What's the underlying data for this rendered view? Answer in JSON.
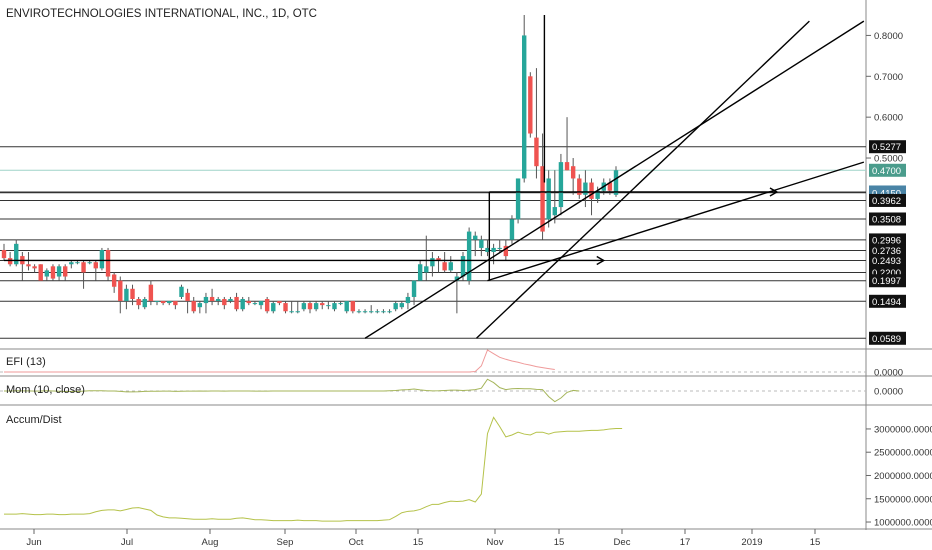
{
  "header": {
    "title": "ENVIROTECHNOLOGIES INTERNATIONAL, INC., 1D, OTC"
  },
  "indicators": {
    "efi_label": "EFI (13)",
    "mom_label": "Mom (10, close)",
    "ad_label": "Accum/Dist",
    "efi_value": "0.0000",
    "mom_value": "0.0000"
  },
  "colors": {
    "up": "#26a69a",
    "down": "#ef5350",
    "line": "#000000",
    "price_badge": "#4a9c8c",
    "hl_badge": "#4a84a6",
    "efi": "#ef9a9a",
    "mom": "#a5b55a",
    "ad": "#b5c24a"
  },
  "chart_data": {
    "type": "candlestick",
    "price_axis": {
      "ticks": [
        "0.8000",
        "0.7000",
        "0.6000",
        "0.5000"
      ],
      "ylim": [
        0.04,
        0.85
      ]
    },
    "x_ticks": [
      "Jun",
      "Jul",
      "Aug",
      "Sep",
      "Oct",
      "15",
      "Nov",
      "15",
      "Dec",
      "17",
      "2019",
      "15"
    ],
    "horizontal_levels": [
      "0.5277",
      "0.4169",
      "0.4150",
      "0.3962",
      "0.3508",
      "0.2996",
      "0.2736",
      "0.2493",
      "0.2200",
      "0.1997",
      "0.1494",
      "0.0589"
    ],
    "current_price": "0.4700",
    "ad_axis": {
      "ticks": [
        "3000000.0000",
        "2500000.0000",
        "2000000.0000",
        "1500000.0000",
        "1000000.0000"
      ],
      "ylim": [
        850000,
        3450000
      ]
    },
    "candles": [
      {
        "o": 0.275,
        "h": 0.29,
        "l": 0.25,
        "c": 0.255
      },
      {
        "o": 0.255,
        "h": 0.27,
        "l": 0.235,
        "c": 0.24
      },
      {
        "o": 0.24,
        "h": 0.3,
        "l": 0.235,
        "c": 0.29
      },
      {
        "o": 0.26,
        "h": 0.27,
        "l": 0.2,
        "c": 0.24
      },
      {
        "o": 0.24,
        "h": 0.27,
        "l": 0.225,
        "c": 0.235
      },
      {
        "o": 0.235,
        "h": 0.24,
        "l": 0.22,
        "c": 0.23
      },
      {
        "o": 0.24,
        "h": 0.24,
        "l": 0.2,
        "c": 0.2
      },
      {
        "o": 0.21,
        "h": 0.23,
        "l": 0.2,
        "c": 0.225
      },
      {
        "o": 0.235,
        "h": 0.24,
        "l": 0.2,
        "c": 0.205
      },
      {
        "o": 0.21,
        "h": 0.24,
        "l": 0.2,
        "c": 0.235
      },
      {
        "o": 0.235,
        "h": 0.24,
        "l": 0.2,
        "c": 0.21
      },
      {
        "o": 0.24,
        "h": 0.25,
        "l": 0.23,
        "c": 0.245
      },
      {
        "o": 0.245,
        "h": 0.25,
        "l": 0.24,
        "c": 0.245
      },
      {
        "o": 0.245,
        "h": 0.25,
        "l": 0.18,
        "c": 0.22
      },
      {
        "o": 0.245,
        "h": 0.25,
        "l": 0.24,
        "c": 0.245
      },
      {
        "o": 0.245,
        "h": 0.25,
        "l": 0.2,
        "c": 0.23
      },
      {
        "o": 0.23,
        "h": 0.28,
        "l": 0.225,
        "c": 0.275
      },
      {
        "o": 0.275,
        "h": 0.28,
        "l": 0.2,
        "c": 0.21
      },
      {
        "o": 0.215,
        "h": 0.22,
        "l": 0.17,
        "c": 0.185
      },
      {
        "o": 0.2,
        "h": 0.21,
        "l": 0.12,
        "c": 0.15
      },
      {
        "o": 0.15,
        "h": 0.19,
        "l": 0.13,
        "c": 0.18
      },
      {
        "o": 0.18,
        "h": 0.19,
        "l": 0.14,
        "c": 0.155
      },
      {
        "o": 0.155,
        "h": 0.16,
        "l": 0.13,
        "c": 0.14
      },
      {
        "o": 0.135,
        "h": 0.16,
        "l": 0.13,
        "c": 0.155
      },
      {
        "o": 0.19,
        "h": 0.2,
        "l": 0.14,
        "c": 0.15
      },
      {
        "o": 0.15,
        "h": 0.15,
        "l": 0.14,
        "c": 0.15
      },
      {
        "o": 0.15,
        "h": 0.15,
        "l": 0.14,
        "c": 0.145
      },
      {
        "o": 0.145,
        "h": 0.15,
        "l": 0.14,
        "c": 0.15
      },
      {
        "o": 0.15,
        "h": 0.15,
        "l": 0.13,
        "c": 0.14
      },
      {
        "o": 0.16,
        "h": 0.19,
        "l": 0.155,
        "c": 0.185
      },
      {
        "o": 0.17,
        "h": 0.18,
        "l": 0.12,
        "c": 0.15
      },
      {
        "o": 0.15,
        "h": 0.16,
        "l": 0.12,
        "c": 0.125
      },
      {
        "o": 0.135,
        "h": 0.15,
        "l": 0.12,
        "c": 0.145
      },
      {
        "o": 0.145,
        "h": 0.17,
        "l": 0.12,
        "c": 0.16
      },
      {
        "o": 0.16,
        "h": 0.18,
        "l": 0.14,
        "c": 0.15
      },
      {
        "o": 0.15,
        "h": 0.16,
        "l": 0.14,
        "c": 0.155
      },
      {
        "o": 0.155,
        "h": 0.16,
        "l": 0.13,
        "c": 0.14
      },
      {
        "o": 0.15,
        "h": 0.16,
        "l": 0.145,
        "c": 0.155
      },
      {
        "o": 0.16,
        "h": 0.17,
        "l": 0.125,
        "c": 0.13
      },
      {
        "o": 0.13,
        "h": 0.16,
        "l": 0.125,
        "c": 0.155
      },
      {
        "o": 0.15,
        "h": 0.16,
        "l": 0.14,
        "c": 0.145
      },
      {
        "o": 0.145,
        "h": 0.15,
        "l": 0.14,
        "c": 0.145
      },
      {
        "o": 0.14,
        "h": 0.15,
        "l": 0.13,
        "c": 0.15
      },
      {
        "o": 0.155,
        "h": 0.16,
        "l": 0.12,
        "c": 0.125
      },
      {
        "o": 0.125,
        "h": 0.15,
        "l": 0.12,
        "c": 0.145
      },
      {
        "o": 0.15,
        "h": 0.15,
        "l": 0.14,
        "c": 0.145
      },
      {
        "o": 0.145,
        "h": 0.15,
        "l": 0.12,
        "c": 0.125
      },
      {
        "o": 0.125,
        "h": 0.15,
        "l": 0.12,
        "c": 0.125
      },
      {
        "o": 0.125,
        "h": 0.15,
        "l": 0.12,
        "c": 0.125
      },
      {
        "o": 0.13,
        "h": 0.15,
        "l": 0.125,
        "c": 0.145
      },
      {
        "o": 0.145,
        "h": 0.15,
        "l": 0.12,
        "c": 0.13
      },
      {
        "o": 0.13,
        "h": 0.15,
        "l": 0.125,
        "c": 0.145
      },
      {
        "o": 0.145,
        "h": 0.15,
        "l": 0.13,
        "c": 0.14
      },
      {
        "o": 0.14,
        "h": 0.15,
        "l": 0.13,
        "c": 0.14
      },
      {
        "o": 0.13,
        "h": 0.15,
        "l": 0.125,
        "c": 0.145
      },
      {
        "o": 0.145,
        "h": 0.15,
        "l": 0.14,
        "c": 0.145
      },
      {
        "o": 0.125,
        "h": 0.15,
        "l": 0.12,
        "c": 0.15
      },
      {
        "o": 0.15,
        "h": 0.15,
        "l": 0.12,
        "c": 0.125
      },
      {
        "o": 0.125,
        "h": 0.13,
        "l": 0.12,
        "c": 0.125
      },
      {
        "o": 0.125,
        "h": 0.13,
        "l": 0.12,
        "c": 0.125
      },
      {
        "o": 0.125,
        "h": 0.14,
        "l": 0.12,
        "c": 0.125
      },
      {
        "o": 0.125,
        "h": 0.13,
        "l": 0.12,
        "c": 0.125
      },
      {
        "o": 0.125,
        "h": 0.13,
        "l": 0.12,
        "c": 0.125
      },
      {
        "o": 0.125,
        "h": 0.13,
        "l": 0.12,
        "c": 0.125
      },
      {
        "o": 0.13,
        "h": 0.15,
        "l": 0.125,
        "c": 0.145
      },
      {
        "o": 0.135,
        "h": 0.15,
        "l": 0.13,
        "c": 0.145
      },
      {
        "o": 0.145,
        "h": 0.17,
        "l": 0.13,
        "c": 0.16
      },
      {
        "o": 0.16,
        "h": 0.2,
        "l": 0.14,
        "c": 0.2
      },
      {
        "o": 0.2,
        "h": 0.25,
        "l": 0.2,
        "c": 0.24
      },
      {
        "o": 0.22,
        "h": 0.31,
        "l": 0.2,
        "c": 0.235
      },
      {
        "o": 0.235,
        "h": 0.27,
        "l": 0.21,
        "c": 0.255
      },
      {
        "o": 0.255,
        "h": 0.26,
        "l": 0.22,
        "c": 0.25
      },
      {
        "o": 0.245,
        "h": 0.27,
        "l": 0.22,
        "c": 0.225
      },
      {
        "o": 0.225,
        "h": 0.26,
        "l": 0.22,
        "c": 0.245
      },
      {
        "o": 0.2,
        "h": 0.22,
        "l": 0.12,
        "c": 0.21
      },
      {
        "o": 0.21,
        "h": 0.27,
        "l": 0.2,
        "c": 0.26
      },
      {
        "o": 0.2,
        "h": 0.33,
        "l": 0.19,
        "c": 0.32
      },
      {
        "o": 0.3,
        "h": 0.32,
        "l": 0.26,
        "c": 0.31
      },
      {
        "o": 0.28,
        "h": 0.31,
        "l": 0.26,
        "c": 0.3
      },
      {
        "o": 0.27,
        "h": 0.3,
        "l": 0.26,
        "c": 0.28
      },
      {
        "o": 0.27,
        "h": 0.29,
        "l": 0.24,
        "c": 0.28
      },
      {
        "o": 0.28,
        "h": 0.3,
        "l": 0.27,
        "c": 0.28
      },
      {
        "o": 0.285,
        "h": 0.3,
        "l": 0.25,
        "c": 0.26
      },
      {
        "o": 0.3,
        "h": 0.36,
        "l": 0.29,
        "c": 0.35
      },
      {
        "o": 0.35,
        "h": 0.45,
        "l": 0.34,
        "c": 0.45
      },
      {
        "o": 0.45,
        "h": 0.85,
        "l": 0.44,
        "c": 0.8
      },
      {
        "o": 0.7,
        "h": 0.71,
        "l": 0.55,
        "c": 0.56
      },
      {
        "o": 0.55,
        "h": 0.72,
        "l": 0.45,
        "c": 0.48
      },
      {
        "o": 0.48,
        "h": 0.56,
        "l": 0.3,
        "c": 0.32
      },
      {
        "o": 0.35,
        "h": 0.47,
        "l": 0.33,
        "c": 0.45
      },
      {
        "o": 0.36,
        "h": 0.47,
        "l": 0.34,
        "c": 0.38
      },
      {
        "o": 0.38,
        "h": 0.51,
        "l": 0.36,
        "c": 0.49
      },
      {
        "o": 0.49,
        "h": 0.6,
        "l": 0.47,
        "c": 0.47
      },
      {
        "o": 0.48,
        "h": 0.5,
        "l": 0.41,
        "c": 0.45
      },
      {
        "o": 0.45,
        "h": 0.46,
        "l": 0.4,
        "c": 0.41
      },
      {
        "o": 0.41,
        "h": 0.47,
        "l": 0.38,
        "c": 0.44
      },
      {
        "o": 0.44,
        "h": 0.45,
        "l": 0.36,
        "c": 0.4
      },
      {
        "o": 0.4,
        "h": 0.43,
        "l": 0.39,
        "c": 0.42
      },
      {
        "o": 0.42,
        "h": 0.45,
        "l": 0.41,
        "c": 0.44
      },
      {
        "o": 0.44,
        "h": 0.45,
        "l": 0.41,
        "c": 0.42
      },
      {
        "o": 0.41,
        "h": 0.48,
        "l": 0.405,
        "c": 0.47
      }
    ],
    "ad_series": [
      1170000,
      1170000,
      1170000,
      1180000,
      1170000,
      1160000,
      1160000,
      1170000,
      1170000,
      1160000,
      1160000,
      1170000,
      1170000,
      1170000,
      1180000,
      1220000,
      1250000,
      1260000,
      1260000,
      1240000,
      1270000,
      1300000,
      1310000,
      1280000,
      1250000,
      1150000,
      1110000,
      1090000,
      1090000,
      1080000,
      1070000,
      1060000,
      1060000,
      1060000,
      1070000,
      1060000,
      1060000,
      1060000,
      1080000,
      1090000,
      1070000,
      1050000,
      1050000,
      1040000,
      1030000,
      1030000,
      1030000,
      1030000,
      1040000,
      1030000,
      1030000,
      1030000,
      1020000,
      1020000,
      1020000,
      1020000,
      1030000,
      1030000,
      1030000,
      1030000,
      1030000,
      1030000,
      1040000,
      1050000,
      1120000,
      1200000,
      1230000,
      1240000,
      1270000,
      1330000,
      1380000,
      1380000,
      1420000,
      1450000,
      1440000,
      1450000,
      1480000,
      1430000,
      1600000,
      2900000,
      3250000,
      3050000,
      2830000,
      2870000,
      2930000,
      2890000,
      2870000,
      2930000,
      2930000,
      2890000,
      2930000,
      2940000,
      2950000,
      2950000,
      2950000,
      2960000,
      2970000,
      2970000,
      2980000,
      3000000,
      3010000,
      3010000
    ],
    "mom_series": [
      0,
      0,
      0.01,
      0.005,
      0.005,
      -0.005,
      0,
      0.01,
      0,
      -0.01,
      -0.02,
      -0.02,
      -0.02,
      -0.005,
      0.01,
      0.01,
      0.01,
      0,
      0,
      -0.015,
      -0.03,
      -0.03,
      -0.025,
      -0.015,
      -0.01,
      -0.01,
      -0.005,
      -0.005,
      -0.015,
      -0.01,
      -0.005,
      -0.005,
      0,
      -0.005,
      0,
      0,
      -0.005,
      0,
      0,
      0,
      0,
      -0.005,
      -0.005,
      -0.005,
      0,
      0,
      0,
      0,
      0,
      0,
      0,
      0,
      0,
      0,
      0,
      0,
      0,
      0,
      0,
      0,
      0,
      0,
      0,
      0.01,
      0.02,
      0.04,
      0.05,
      0.07,
      0.04,
      0.02,
      0.005,
      0.01,
      0.02,
      0.03,
      0.03,
      0.02,
      0.03,
      0.05,
      0.1,
      0.42,
      0.3,
      0.12,
      0.05,
      0.08,
      0.09,
      0.08,
      0.08,
      0.06,
      0.05,
      -0.2,
      -0.38,
      -0.25,
      -0.05,
      0.02,
      0.0
    ],
    "efi_series": [
      0,
      0,
      0,
      0,
      0,
      0,
      0,
      0,
      0,
      0,
      0,
      0,
      0,
      0,
      0,
      0,
      0,
      0,
      0,
      0,
      0,
      0,
      0,
      0,
      0,
      0,
      0,
      0,
      0,
      0,
      0,
      0,
      0,
      0,
      0,
      0,
      0,
      0,
      0,
      0,
      0,
      0,
      0,
      0,
      0,
      0,
      0,
      0,
      0,
      0,
      0,
      0,
      0,
      0,
      0,
      0,
      0,
      0,
      0,
      0,
      0,
      0,
      0,
      0,
      0,
      0,
      0,
      0,
      0,
      0,
      0,
      0,
      0,
      0,
      0,
      0,
      0,
      0.02,
      0.25,
      0.9,
      0.75,
      0.6,
      0.52,
      0.45,
      0.4,
      0.33,
      0.28,
      0.22,
      0.18,
      0.14,
      0.1
    ]
  }
}
